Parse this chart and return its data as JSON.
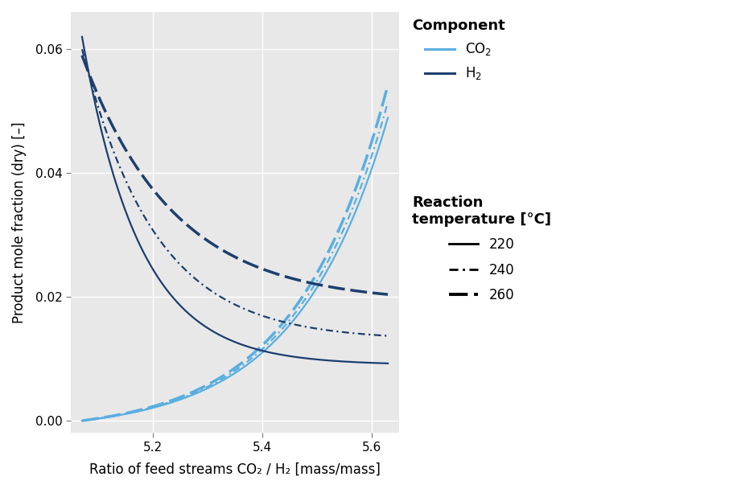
{
  "x_min": 5.05,
  "x_max": 5.65,
  "y_min": -0.002,
  "y_max": 0.066,
  "x_ticks": [
    5.2,
    5.4,
    5.6
  ],
  "y_ticks": [
    0.0,
    0.02,
    0.04,
    0.06
  ],
  "xlabel": "Ratio of feed streams CO₂ / H₂ [mass/mass]",
  "ylabel": "Product mole fraction (dry) [–]",
  "bg_color": "#e8e8e8",
  "color_co2": "#5aaee0",
  "color_h2": "#1c3f6e",
  "lw_thin": 1.6,
  "lw_thick": 2.5,
  "legend1_title": "Component",
  "legend2_title": "Reaction\ntemperature [°C]",
  "legend2_labels": [
    "220",
    "240",
    "260"
  ],
  "font_size": 12,
  "title_font_size": 13
}
